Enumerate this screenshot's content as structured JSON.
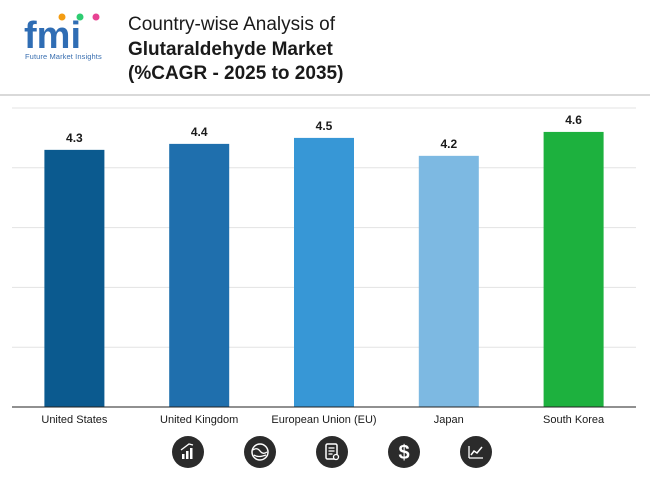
{
  "brand": {
    "name": "fmi",
    "tagline": "Future Market Insights"
  },
  "title": {
    "line1": "Country-wise Analysis of",
    "line2": "Glutaraldehyde Market",
    "line3": "(%CAGR - 2025 to 2035)"
  },
  "chart_data": {
    "type": "bar",
    "title": "Country-wise Analysis of Glutaraldehyde Market (%CAGR - 2025 to 2035)",
    "xlabel": "",
    "ylabel": "",
    "ylim": [
      0,
      5
    ],
    "grid": true,
    "categories": [
      "United States",
      "United Kingdom",
      "European Union (EU)",
      "Japan",
      "South Korea"
    ],
    "values": [
      4.3,
      4.4,
      4.5,
      4.2,
      4.6
    ],
    "value_labels": [
      "4.3",
      "4.4",
      "4.5",
      "4.2",
      "4.6"
    ],
    "colors": [
      "#0b5a8f",
      "#1f6fad",
      "#3797d6",
      "#7db9e2",
      "#1db13e"
    ]
  },
  "footer_icons": [
    "bar-chart-icon",
    "globe-icon",
    "document-icon",
    "dollar-icon",
    "trend-chart-icon"
  ]
}
